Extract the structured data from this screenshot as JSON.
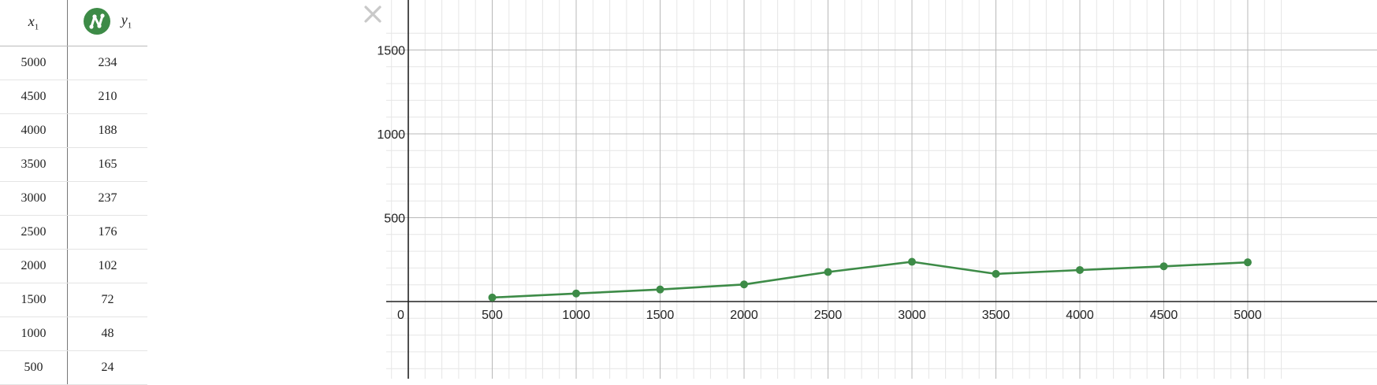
{
  "table": {
    "x_header": "x",
    "x_sub": "1",
    "y_header": "y",
    "y_sub": "1",
    "series_icon": "series-line-icon",
    "rows": [
      {
        "x": "5000",
        "y": "234"
      },
      {
        "x": "4500",
        "y": "210"
      },
      {
        "x": "4000",
        "y": "188"
      },
      {
        "x": "3500",
        "y": "165"
      },
      {
        "x": "3000",
        "y": "237"
      },
      {
        "x": "2500",
        "y": "176"
      },
      {
        "x": "2000",
        "y": "102"
      },
      {
        "x": "1500",
        "y": "72"
      },
      {
        "x": "1000",
        "y": "48"
      },
      {
        "x": "500",
        "y": "24"
      }
    ]
  },
  "close_icon": "close-icon",
  "colors": {
    "series": "#3d8b47",
    "axis": "#222222",
    "major_grid": "#b8b8b8",
    "minor_grid": "#e6e6e6"
  },
  "chart_data": {
    "type": "line",
    "x": [
      500,
      1000,
      1500,
      2000,
      2500,
      3000,
      3500,
      4000,
      4500,
      5000
    ],
    "series": [
      {
        "values": [
          24,
          48,
          72,
          102,
          176,
          237,
          165,
          188,
          210,
          234
        ]
      }
    ],
    "xlim": [
      -200,
      5200
    ],
    "ylim": [
      -400,
      1610
    ],
    "x_ticks": [
      "0",
      "500",
      "1000",
      "1500",
      "2000",
      "2500",
      "3000",
      "3500",
      "4000",
      "4500",
      "5000"
    ],
    "y_ticks": [
      "500",
      "1000",
      "1500"
    ],
    "grid": true
  }
}
